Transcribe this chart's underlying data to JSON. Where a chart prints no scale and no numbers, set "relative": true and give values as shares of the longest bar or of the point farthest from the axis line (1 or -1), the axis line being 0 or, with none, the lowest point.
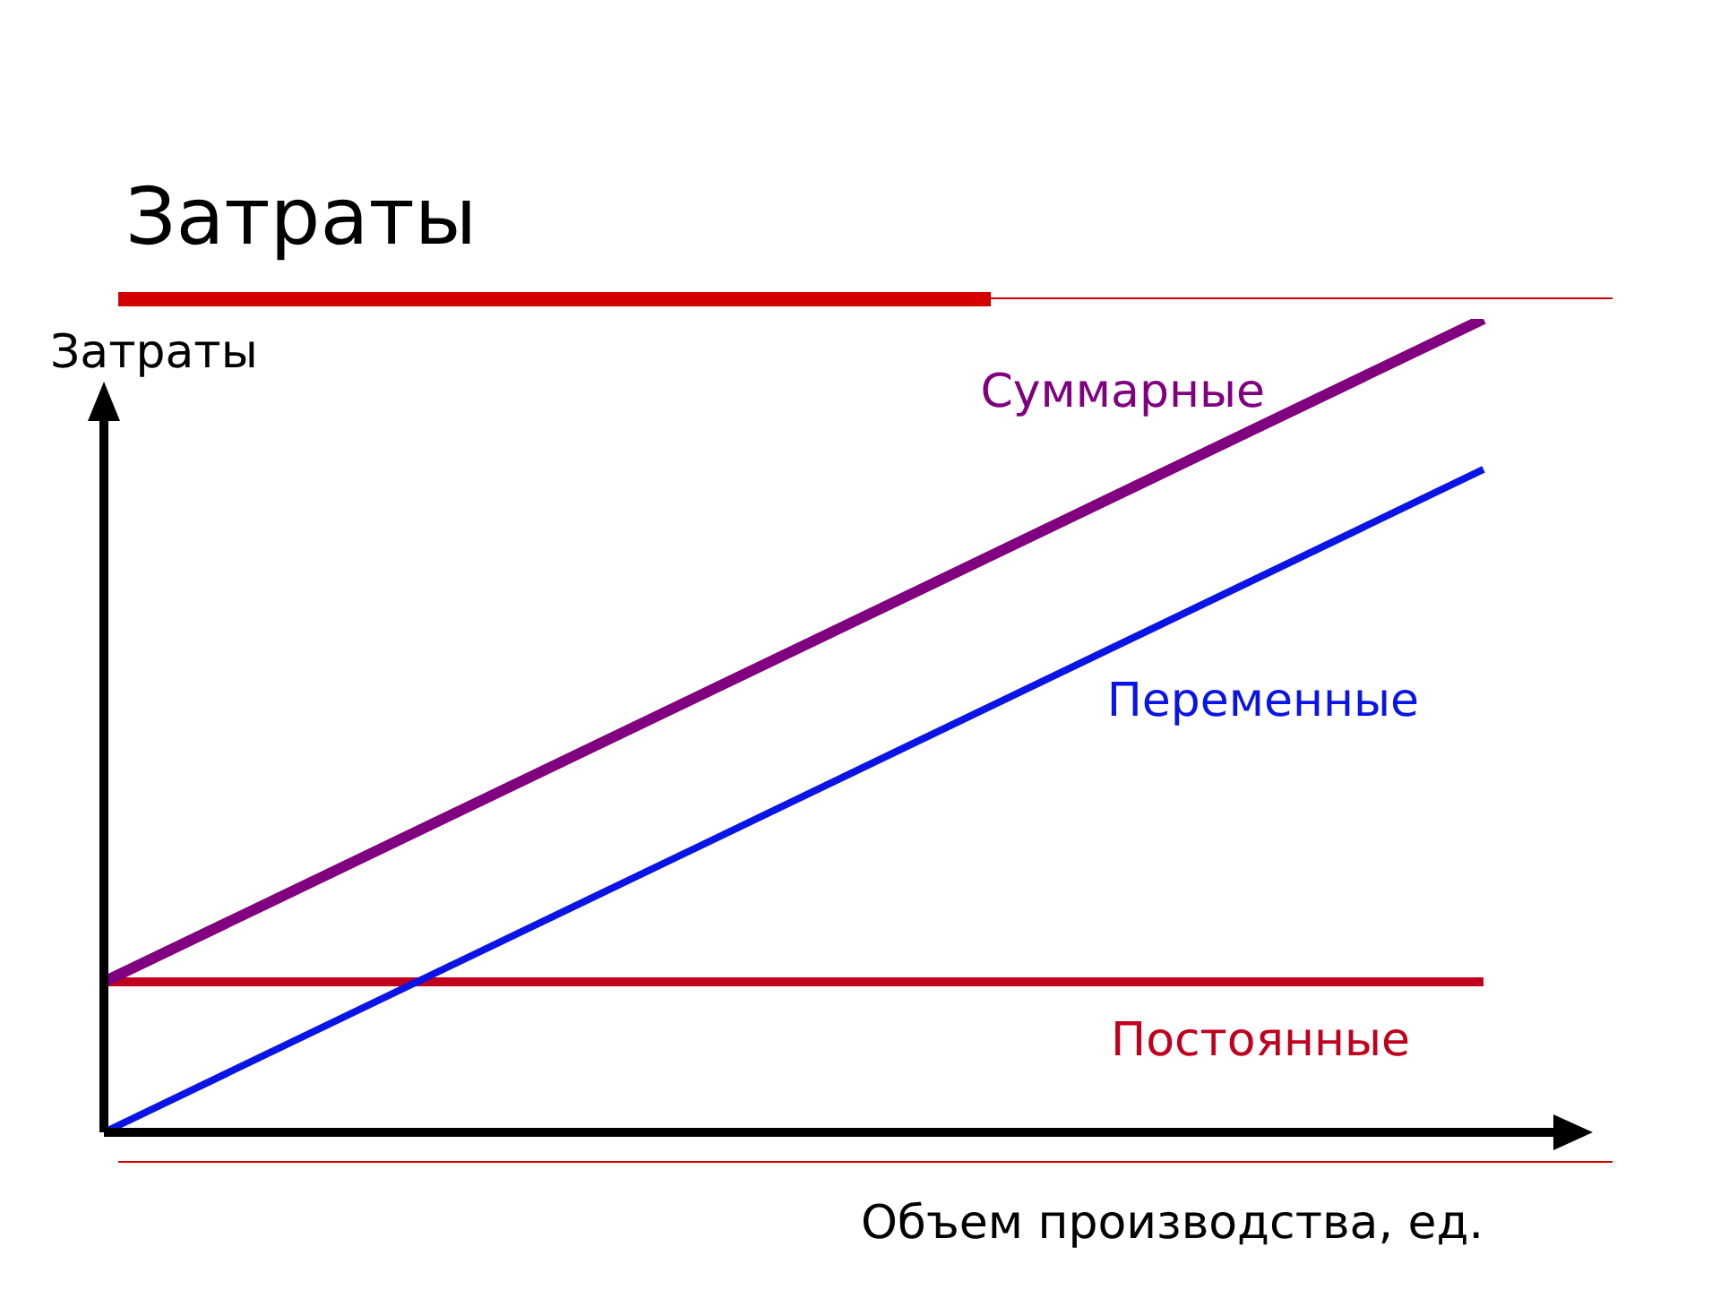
{
  "chart_data": {
    "type": "line",
    "title": "Затраты",
    "ylabel": "Затраты",
    "xlabel": "Объем производства, ед.",
    "relative": true,
    "categories": [
      null,
      null
    ],
    "legend": false,
    "grid": false,
    "marker": "none",
    "line_style": "solid",
    "series": [
      {
        "name": "Суммарные",
        "color": "#800080",
        "values": [
          0.185,
          1
        ]
      },
      {
        "name": "Переменные",
        "color": "#0a14e6",
        "values": [
          0,
          0.815
        ]
      },
      {
        "name": "Постоянные",
        "color": "#c0001c",
        "values": [
          0.185,
          0.185
        ]
      }
    ]
  }
}
